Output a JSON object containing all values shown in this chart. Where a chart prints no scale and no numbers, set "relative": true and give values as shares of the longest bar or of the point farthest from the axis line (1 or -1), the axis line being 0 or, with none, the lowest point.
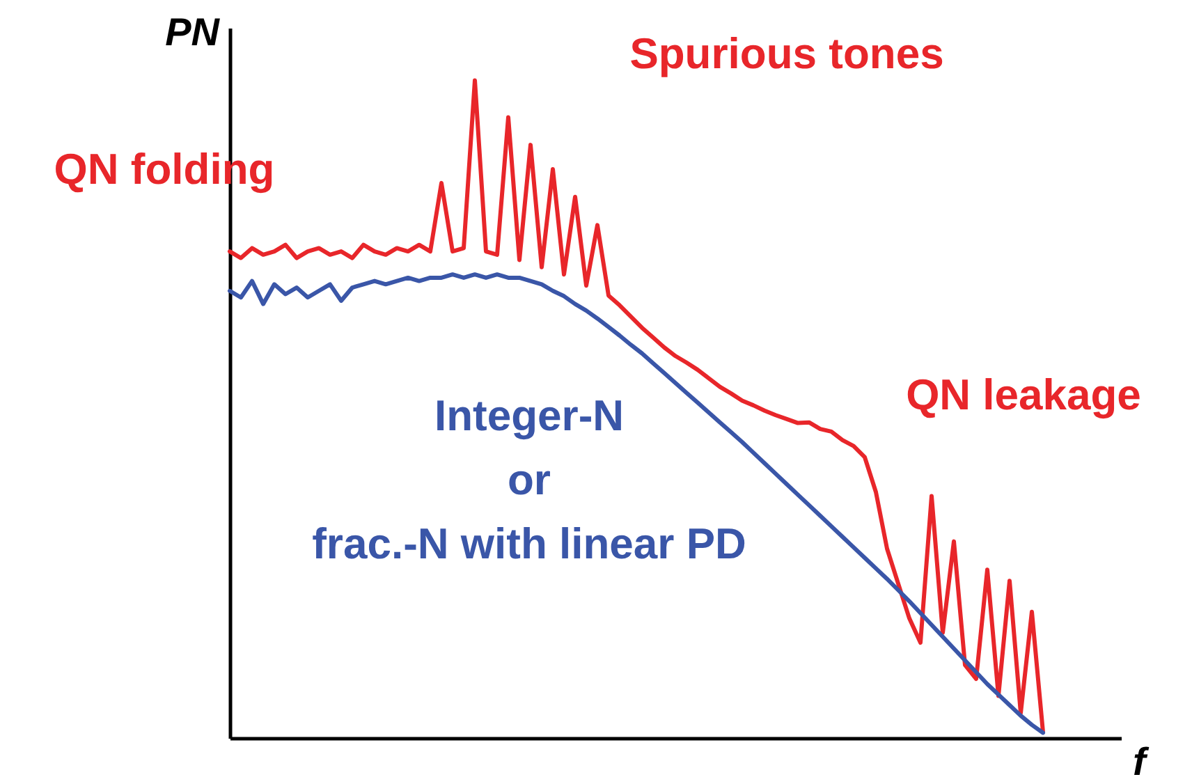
{
  "chart_data": {
    "type": "line",
    "relative": true,
    "xlabel": "f",
    "ylabel": "PN",
    "categories": [
      null,
      null,
      null,
      null,
      null,
      null,
      null,
      null,
      null,
      null,
      null,
      null,
      null,
      null,
      null,
      null,
      null,
      null,
      null,
      null,
      null,
      null,
      null,
      null,
      null,
      null,
      null,
      null,
      null,
      null,
      null,
      null,
      null,
      null,
      null,
      null,
      null,
      null,
      null,
      null,
      null,
      null,
      null,
      null,
      null,
      null,
      null,
      null,
      null,
      null,
      null,
      null,
      null,
      null,
      null,
      null,
      null,
      null,
      null,
      null,
      null,
      null,
      null,
      null,
      null,
      null,
      null,
      null,
      null,
      null,
      null,
      null,
      null,
      null,
      null,
      null,
      null,
      null,
      null,
      null,
      null
    ],
    "series": [
      {
        "color": "#e8262a",
        "values": [
          0.74,
          0.73,
          0.745,
          0.735,
          0.74,
          0.75,
          0.73,
          0.74,
          0.745,
          0.735,
          0.74,
          0.73,
          0.75,
          0.74,
          0.735,
          0.745,
          0.74,
          0.75,
          0.74,
          0.844,
          0.74,
          0.745,
          1.0,
          0.74,
          0.735,
          0.944,
          0.727,
          0.902,
          0.716,
          0.865,
          0.705,
          0.823,
          0.688,
          0.78,
          0.673,
          0.658,
          0.641,
          0.624,
          0.609,
          0.594,
          0.581,
          0.571,
          0.56,
          0.547,
          0.534,
          0.524,
          0.513,
          0.506,
          0.498,
          0.491,
          0.485,
          0.479,
          0.48,
          0.47,
          0.466,
          0.453,
          0.444,
          0.427,
          0.374,
          0.288,
          0.235,
          0.182,
          0.145,
          0.368,
          0.16,
          0.299,
          0.111,
          0.09,
          0.256,
          0.064,
          0.239,
          0.038,
          0.192,
          0.009,
          null,
          null,
          null,
          null,
          null,
          null,
          null
        ]
      },
      {
        "color": "#3a56a8",
        "values": [
          0.68,
          0.67,
          0.695,
          0.66,
          0.69,
          0.675,
          0.685,
          0.67,
          0.68,
          0.69,
          0.665,
          0.685,
          0.69,
          0.695,
          0.69,
          0.695,
          0.7,
          0.695,
          0.7,
          0.7,
          0.705,
          0.7,
          0.705,
          0.7,
          0.705,
          0.7,
          0.7,
          0.695,
          0.69,
          0.68,
          0.672,
          0.66,
          0.65,
          0.638,
          0.625,
          0.612,
          0.598,
          0.585,
          0.57,
          0.555,
          0.54,
          0.525,
          0.51,
          0.495,
          0.48,
          0.465,
          0.45,
          0.434,
          0.418,
          0.402,
          0.386,
          0.37,
          0.354,
          0.338,
          0.322,
          0.306,
          0.29,
          0.274,
          0.258,
          0.242,
          0.225,
          0.208,
          0.19,
          0.172,
          0.154,
          0.136,
          0.118,
          0.1,
          0.082,
          0.066,
          0.05,
          0.034,
          0.02,
          0.008,
          null,
          null,
          null,
          null,
          null,
          null,
          null
        ]
      }
    ],
    "annotations": [
      "QN folding",
      "Spurious tones",
      "QN leakage",
      "Integer-N\nor\nfrac.-N with linear PD"
    ]
  }
}
